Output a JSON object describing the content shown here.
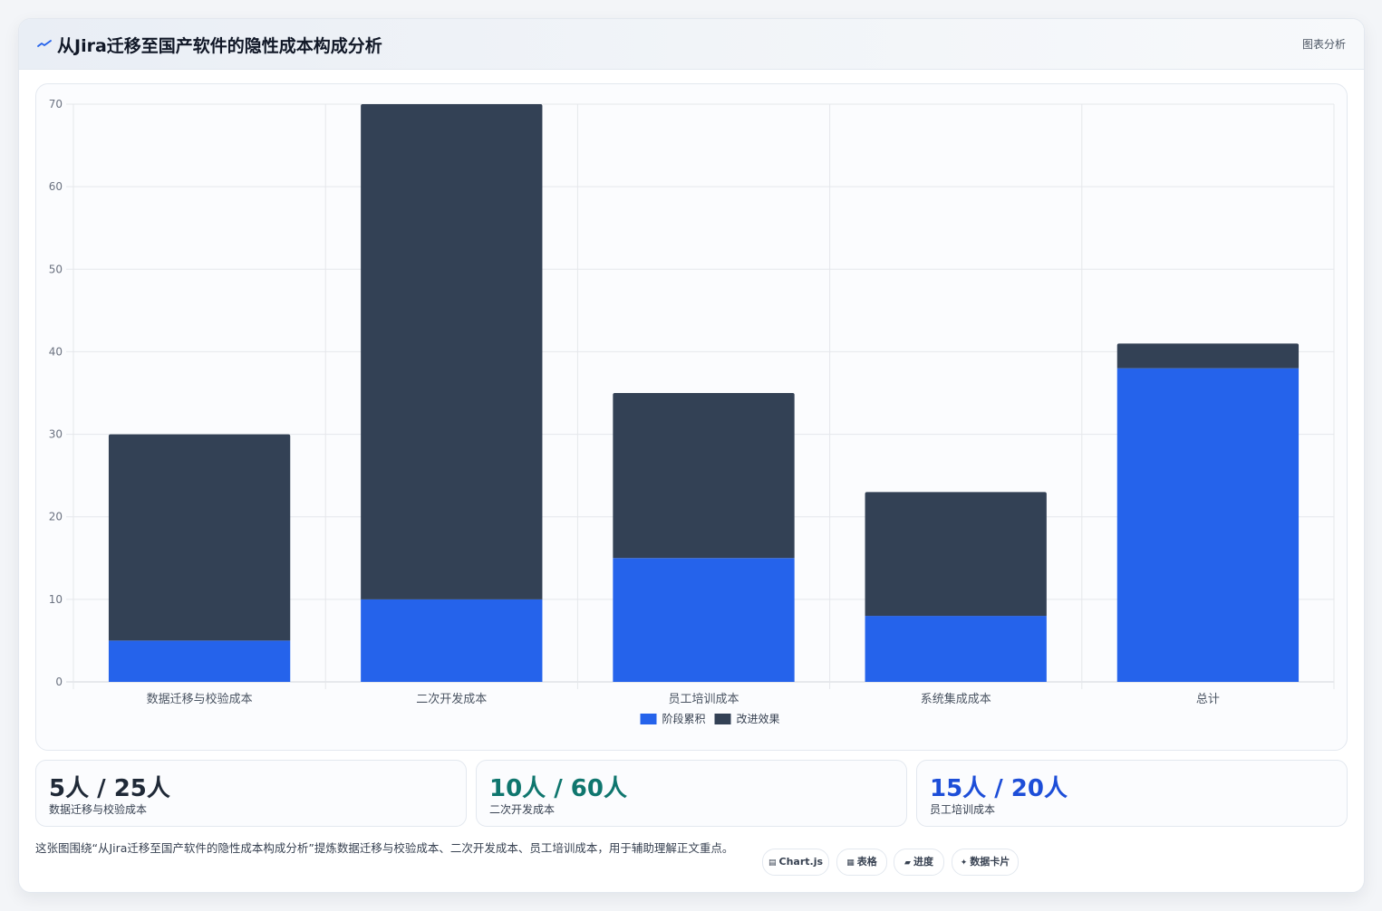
{
  "header": {
    "title": "从Jira迁移至国产软件的隐性成本构成分析",
    "tag": "图表分析",
    "icon": "trend-line-icon"
  },
  "colors": {
    "stage": "#2563eb",
    "improve": "#334155",
    "stat_1": "#1f2937",
    "stat_2": "#0f766e",
    "stat_3": "#1d4ed8"
  },
  "chart_data": {
    "type": "bar",
    "stacked": true,
    "categories": [
      "数据迁移与校验成本",
      "二次开发成本",
      "员工培训成本",
      "系统集成成本",
      "总计"
    ],
    "series": [
      {
        "name": "阶段累积",
        "color": "#2563eb",
        "values": [
          5,
          10,
          15,
          8,
          38
        ]
      },
      {
        "name": "改进效果",
        "color": "#334155",
        "values": [
          25,
          60,
          20,
          15,
          3
        ]
      }
    ],
    "ylim": [
      0,
      70
    ],
    "yticks": [
      0,
      10,
      20,
      30,
      40,
      50,
      60,
      70
    ],
    "grid": true,
    "legend": "bottom"
  },
  "stats": [
    {
      "value": "5人 / 25人",
      "label": "数据迁移与校验成本"
    },
    {
      "value": "10人 / 60人",
      "label": "二次开发成本"
    },
    {
      "value": "15人 / 20人",
      "label": "员工培训成本"
    }
  ],
  "footer": {
    "text": "这张图围绕“从Jira迁移至国产软件的隐性成本构成分析”提炼数据迁移与校验成本、二次开发成本、员工培训成本，用于辅助理解正文重点。",
    "pills": [
      {
        "icon": "chart-icon",
        "label": "Chart.js"
      },
      {
        "icon": "table-icon",
        "label": "表格"
      },
      {
        "icon": "progress-icon",
        "label": "进度"
      },
      {
        "icon": "card-icon",
        "label": "数据卡片"
      }
    ]
  }
}
